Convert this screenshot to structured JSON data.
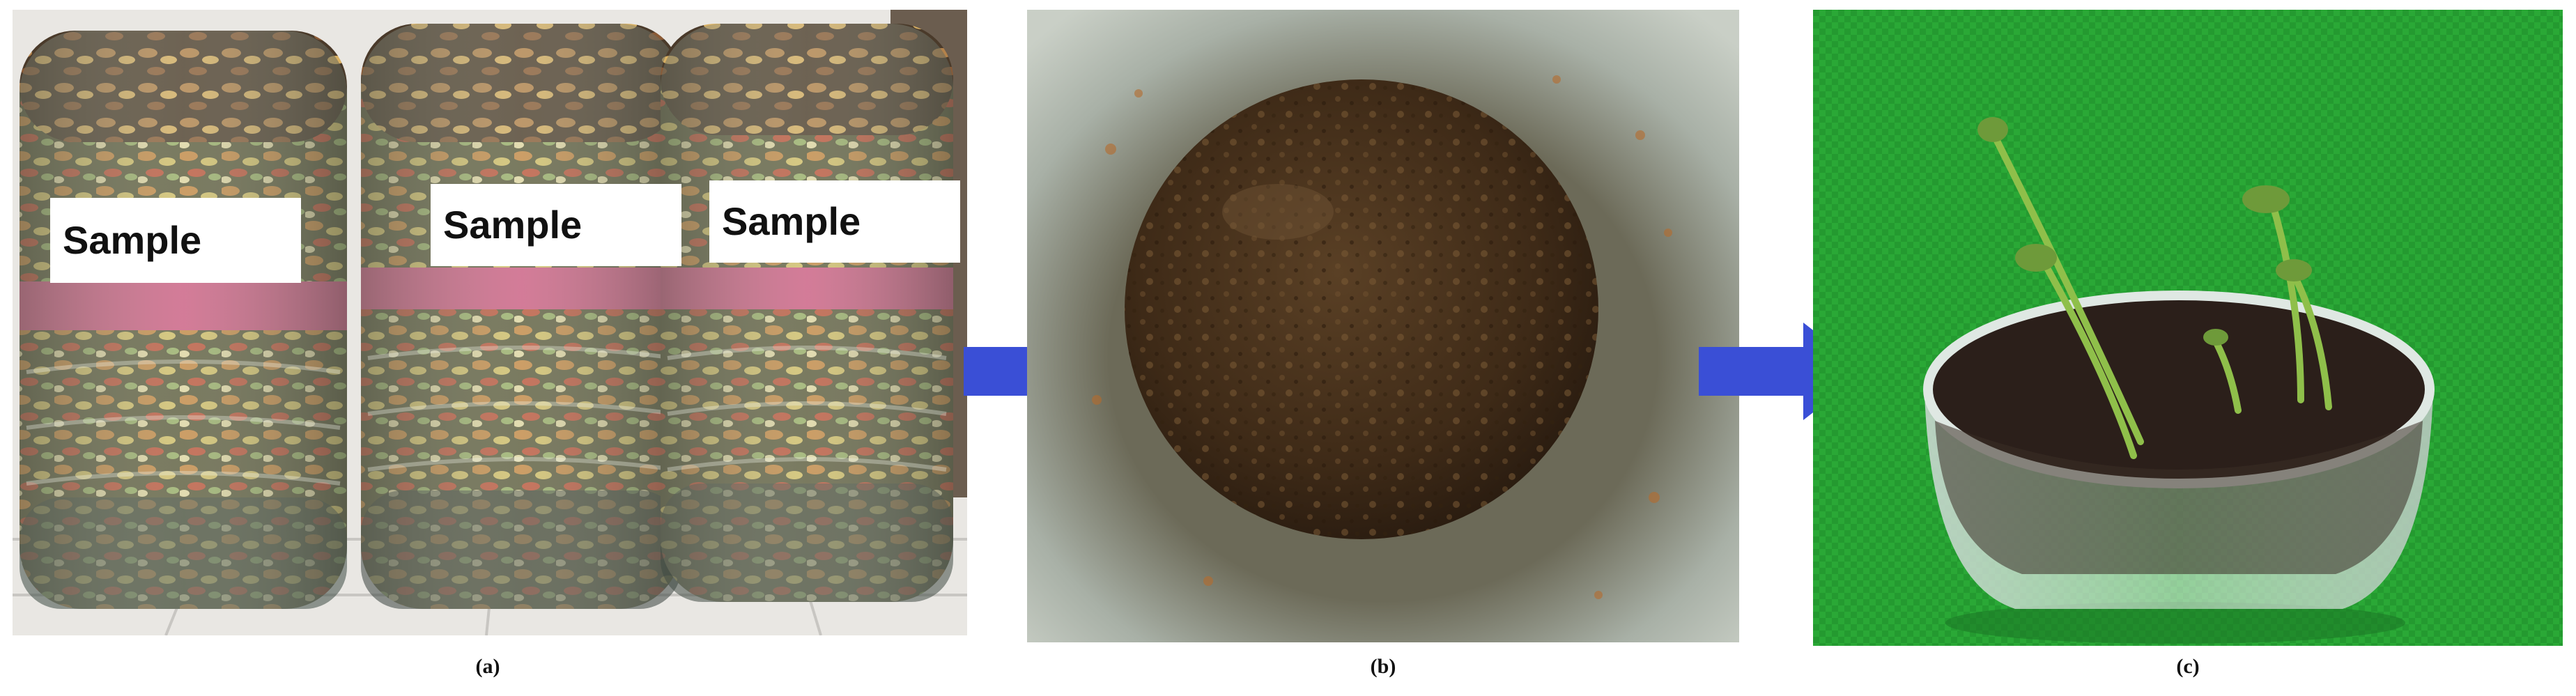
{
  "panels": [
    {
      "id": "a",
      "caption": "(a)",
      "labels": [
        "Sample",
        "Sample",
        "Sample"
      ]
    },
    {
      "id": "b",
      "caption": "(b)"
    },
    {
      "id": "c",
      "caption": "(c)"
    }
  ],
  "arrows": [
    {
      "icon": "arrow-right-icon",
      "color": "#3a4fd6"
    },
    {
      "icon": "arrow-right-icon",
      "color": "#3a4fd6"
    }
  ]
}
